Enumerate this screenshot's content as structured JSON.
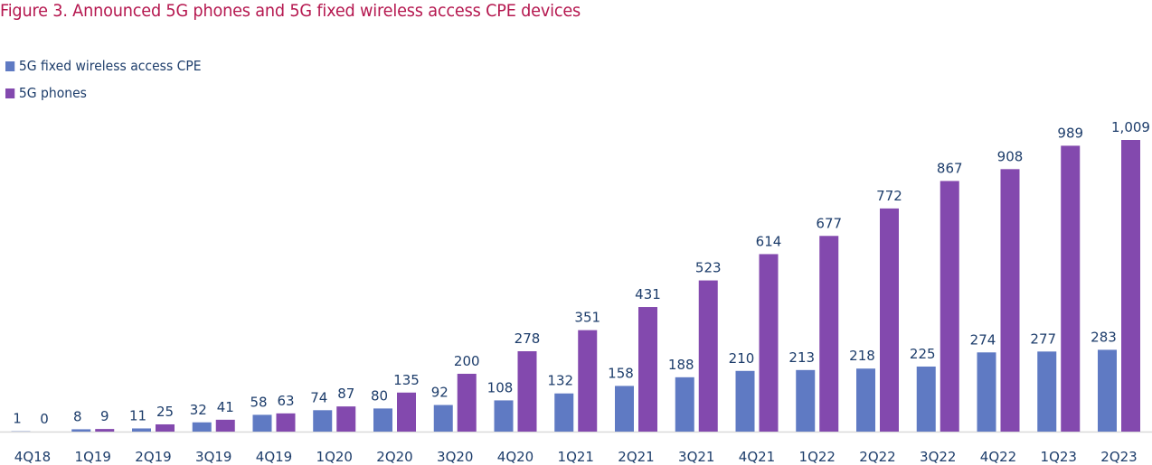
{
  "chart_data": {
    "type": "bar",
    "title": "Figure 3. Announced 5G phones and 5G fixed wireless access CPE devices",
    "xlabel": "",
    "ylabel": "",
    "ylim": [
      0,
      1009
    ],
    "grid": false,
    "legend_position": "top-left",
    "categories": [
      "4Q18",
      "1Q19",
      "2Q19",
      "3Q19",
      "4Q19",
      "1Q20",
      "2Q20",
      "3Q20",
      "4Q20",
      "1Q21",
      "2Q21",
      "3Q21",
      "4Q21",
      "1Q22",
      "2Q22",
      "3Q22",
      "4Q22",
      "1Q23",
      "2Q23"
    ],
    "series": [
      {
        "name": "5G fixed wireless access CPE",
        "color": "#5f7ac3",
        "values": [
          1,
          8,
          11,
          32,
          58,
          74,
          80,
          92,
          108,
          132,
          158,
          188,
          210,
          213,
          218,
          225,
          274,
          277,
          283
        ],
        "labels": [
          "1",
          "8",
          "11",
          "32",
          "58",
          "74",
          "80",
          "92",
          "108",
          "132",
          "158",
          "188",
          "210",
          "213",
          "218",
          "225",
          "274",
          "277",
          "283"
        ]
      },
      {
        "name": "5G phones",
        "color": "#8349ae",
        "values": [
          0,
          9,
          25,
          41,
          63,
          87,
          135,
          200,
          278,
          351,
          431,
          523,
          614,
          677,
          772,
          867,
          908,
          989,
          1009
        ],
        "labels": [
          "0",
          "9",
          "25",
          "41",
          "63",
          "87",
          "135",
          "200",
          "278",
          "351",
          "431",
          "523",
          "614",
          "677",
          "772",
          "867",
          "908",
          "989",
          "1,009"
        ]
      }
    ]
  }
}
